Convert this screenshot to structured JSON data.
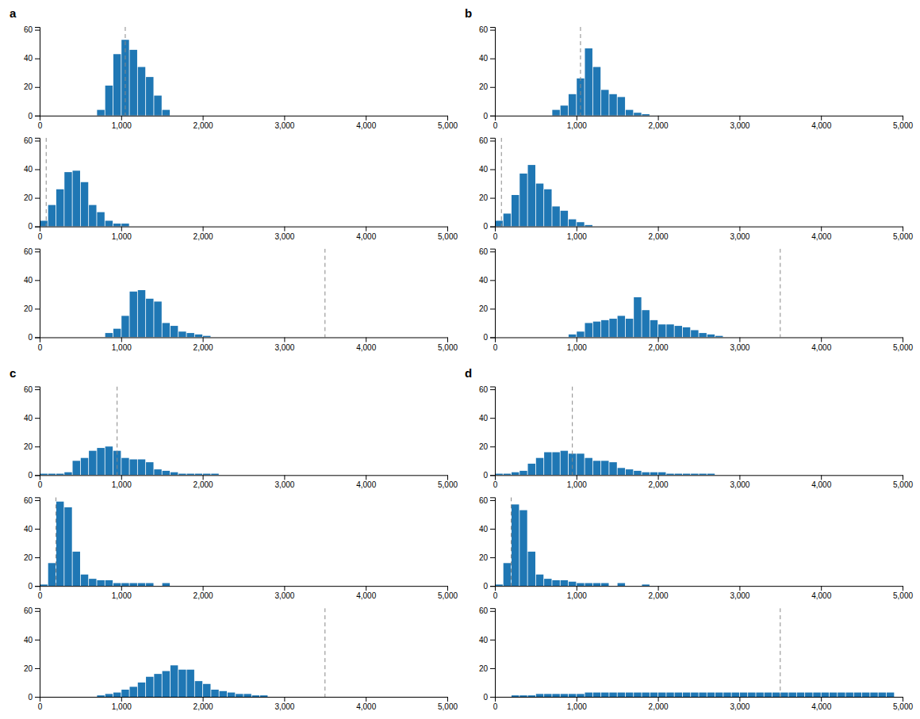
{
  "chart_data": [
    {
      "type": "histogram",
      "title": "a",
      "bins": [
        700,
        800,
        900,
        1000,
        1100,
        1200,
        1300,
        1400,
        1500,
        1600
      ],
      "values": [
        4,
        21,
        43,
        53,
        46,
        34,
        27,
        14,
        4
      ],
      "vline": {
        "x": 1050,
        "line_style": "dashed"
      },
      "xlim": [
        0,
        5000
      ],
      "ylim": [
        0,
        62
      ],
      "xticks": [
        0,
        {
          "value": 1000,
          "label": "1,000"
        },
        {
          "value": 2000,
          "label": "2,000"
        },
        {
          "value": 3000,
          "label": "3,000"
        },
        {
          "value": 4000,
          "label": "4,000"
        },
        {
          "value": 5000,
          "label": "5,000"
        }
      ],
      "yticks": [
        0,
        20,
        40,
        60
      ]
    },
    {
      "type": "histogram",
      "bins": [
        0,
        100,
        200,
        300,
        400,
        500,
        600,
        700,
        800,
        900,
        1000,
        1100
      ],
      "values": [
        4,
        15,
        26,
        38,
        39,
        31,
        15,
        10,
        4,
        2,
        2
      ],
      "vline": {
        "x": 80,
        "line_style": "dashed"
      },
      "xlim": [
        0,
        5000
      ],
      "ylim": [
        0,
        62
      ],
      "xticks": [
        0,
        {
          "value": 1000,
          "label": "1,000"
        },
        {
          "value": 2000,
          "label": "2,000"
        },
        {
          "value": 3000,
          "label": "3,000"
        },
        {
          "value": 4000,
          "label": "4,000"
        },
        {
          "value": 5000,
          "label": "5,000"
        }
      ],
      "yticks": [
        0,
        20,
        40,
        60
      ]
    },
    {
      "type": "histogram",
      "bins": [
        800,
        900,
        1000,
        1100,
        1200,
        1300,
        1400,
        1500,
        1600,
        1700,
        1800,
        1900,
        2000,
        2100,
        2200,
        2300,
        2400
      ],
      "values": [
        3,
        6,
        15,
        32,
        33,
        27,
        25,
        10,
        8,
        4,
        3,
        2,
        1,
        0,
        0,
        0
      ],
      "vline": {
        "x": 3500,
        "line_style": "dashed"
      },
      "xlim": [
        0,
        5000
      ],
      "ylim": [
        0,
        62
      ],
      "xticks": [
        0,
        {
          "value": 1000,
          "label": "1,000"
        },
        {
          "value": 2000,
          "label": "2,000"
        },
        {
          "value": 3000,
          "label": "3,000"
        },
        {
          "value": 4000,
          "label": "4,000"
        },
        {
          "value": 5000,
          "label": "5,000"
        }
      ],
      "yticks": [
        0,
        20,
        40,
        60
      ]
    },
    {
      "type": "histogram",
      "title": "b",
      "bins": [
        700,
        800,
        900,
        1000,
        1100,
        1200,
        1300,
        1400,
        1500,
        1600,
        1700,
        1800,
        1900,
        2000
      ],
      "values": [
        4,
        7,
        15,
        26,
        47,
        34,
        18,
        15,
        13,
        4,
        2,
        1,
        0
      ],
      "vline": {
        "x": 1050,
        "line_style": "dashed"
      },
      "xlim": [
        0,
        5000
      ],
      "ylim": [
        0,
        62
      ],
      "xticks": [
        0,
        {
          "value": 1000,
          "label": "1,000"
        },
        {
          "value": 2000,
          "label": "2,000"
        },
        {
          "value": 3000,
          "label": "3,000"
        },
        {
          "value": 4000,
          "label": "4,000"
        },
        {
          "value": 5000,
          "label": "5,000"
        }
      ],
      "yticks": [
        0,
        20,
        40,
        60
      ]
    },
    {
      "type": "histogram",
      "bins": [
        0,
        100,
        200,
        300,
        400,
        500,
        600,
        700,
        800,
        900,
        1000,
        1100,
        1200,
        1300,
        1400,
        1500
      ],
      "values": [
        4,
        9,
        22,
        37,
        43,
        30,
        26,
        14,
        11,
        5,
        3,
        1,
        0,
        0,
        0
      ],
      "vline": {
        "x": 80,
        "line_style": "dashed"
      },
      "xlim": [
        0,
        5000
      ],
      "ylim": [
        0,
        62
      ],
      "xticks": [
        0,
        {
          "value": 1000,
          "label": "1,000"
        },
        {
          "value": 2000,
          "label": "2,000"
        },
        {
          "value": 3000,
          "label": "3,000"
        },
        {
          "value": 4000,
          "label": "4,000"
        },
        {
          "value": 5000,
          "label": "5,000"
        }
      ],
      "yticks": [
        0,
        20,
        40,
        60
      ]
    },
    {
      "type": "histogram",
      "bins": [
        900,
        1000,
        1100,
        1200,
        1300,
        1400,
        1500,
        1600,
        1700,
        1800,
        1900,
        2000,
        2100,
        2200,
        2300,
        2400,
        2500,
        2600,
        2700,
        2800,
        2900,
        3000,
        3100,
        3200,
        3300,
        3400,
        3500,
        3600
      ],
      "values": [
        2,
        4,
        10,
        11,
        12,
        13,
        15,
        13,
        28,
        19,
        12,
        9,
        9,
        8,
        7,
        5,
        3,
        2,
        1,
        0,
        0,
        0,
        0,
        0,
        0,
        0,
        0
      ],
      "vline": {
        "x": 3500,
        "line_style": "dashed"
      },
      "xlim": [
        0,
        5000
      ],
      "ylim": [
        0,
        62
      ],
      "xticks": [
        0,
        {
          "value": 1000,
          "label": "1,000"
        },
        {
          "value": 2000,
          "label": "2,000"
        },
        {
          "value": 3000,
          "label": "3,000"
        },
        {
          "value": 4000,
          "label": "4,000"
        },
        {
          "value": 5000,
          "label": "5,000"
        }
      ],
      "yticks": [
        0,
        20,
        40,
        60
      ]
    },
    {
      "type": "histogram",
      "title": "c",
      "bins": [
        0,
        100,
        200,
        300,
        400,
        500,
        600,
        700,
        800,
        900,
        1000,
        1100,
        1200,
        1300,
        1400,
        1500,
        1600,
        1700,
        1800,
        1900,
        2000,
        2100,
        2200,
        2300,
        2400,
        2500,
        2600,
        2700,
        2800,
        2900,
        3000,
        3100,
        3200,
        3300,
        3400,
        3500,
        3600,
        3700,
        3800,
        3900,
        4000
      ],
      "values": [
        1,
        1,
        1,
        2,
        10,
        12,
        17,
        19,
        20,
        17,
        12,
        11,
        11,
        9,
        4,
        3,
        2,
        1,
        1,
        1,
        1,
        1,
        0,
        0,
        0,
        0,
        0,
        0,
        0,
        0,
        0,
        0,
        0,
        0,
        0,
        0,
        0,
        0,
        0,
        0
      ],
      "vline": {
        "x": 950,
        "line_style": "dashed"
      },
      "xlim": [
        0,
        5000
      ],
      "ylim": [
        0,
        62
      ],
      "xticks": [
        0,
        {
          "value": 1000,
          "label": "1,000"
        },
        {
          "value": 2000,
          "label": "2,000"
        },
        {
          "value": 3000,
          "label": "3,000"
        },
        {
          "value": 4000,
          "label": "4,000"
        },
        {
          "value": 5000,
          "label": "5,000"
        }
      ],
      "yticks": [
        0,
        20,
        40,
        60
      ]
    },
    {
      "type": "histogram",
      "bins": [
        0,
        100,
        200,
        300,
        400,
        500,
        600,
        700,
        800,
        900,
        1000,
        1100,
        1200,
        1300,
        1400,
        1500,
        1600,
        1700,
        1800,
        1900,
        2000,
        2100,
        2200,
        2300,
        2400,
        2500,
        2600,
        2700,
        2800,
        2900,
        3000,
        3100,
        3200,
        3300,
        3400,
        3500,
        3600,
        3700,
        3800,
        3900
      ],
      "values": [
        1,
        16,
        59,
        55,
        24,
        8,
        5,
        4,
        4,
        2,
        2,
        2,
        2,
        2,
        0,
        2,
        0,
        0,
        0,
        0,
        0,
        0,
        0,
        0,
        0,
        0,
        0,
        0,
        0,
        0,
        0,
        0,
        0,
        0,
        0,
        0,
        0,
        0,
        0
      ],
      "vline": {
        "x": 200,
        "line_style": "dashed"
      },
      "xlim": [
        0,
        5000
      ],
      "ylim": [
        0,
        62
      ],
      "xticks": [
        0,
        {
          "value": 1000,
          "label": "1,000"
        },
        {
          "value": 2000,
          "label": "2,000"
        },
        {
          "value": 3000,
          "label": "3,000"
        },
        {
          "value": 4000,
          "label": "4,000"
        },
        {
          "value": 5000,
          "label": "5,000"
        }
      ],
      "yticks": [
        0,
        20,
        40,
        60
      ]
    },
    {
      "type": "histogram",
      "bins": [
        0,
        100,
        200,
        300,
        400,
        500,
        600,
        700,
        800,
        900,
        1000,
        1100,
        1200,
        1300,
        1400,
        1500,
        1600,
        1700,
        1800,
        1900,
        2000,
        2100,
        2200,
        2300,
        2400,
        2500,
        2600,
        2700,
        2800,
        2900,
        3000,
        3100,
        3200,
        3300,
        3400,
        3500,
        3600,
        3700,
        3800,
        3900,
        4000,
        4100,
        4200,
        4300,
        4400
      ],
      "values": [
        0,
        0,
        0,
        0,
        0,
        0,
        0,
        1,
        2,
        3,
        5,
        7,
        10,
        14,
        16,
        18,
        22,
        19,
        19,
        11,
        9,
        5,
        4,
        3,
        2,
        2,
        1,
        1,
        0,
        0,
        0,
        0,
        0,
        0,
        0,
        0,
        0,
        0,
        0,
        0,
        0,
        0,
        0,
        0
      ],
      "vline": {
        "x": 3500,
        "line_style": "dashed"
      },
      "xlim": [
        0,
        5000
      ],
      "ylim": [
        0,
        62
      ],
      "xticks": [
        0,
        {
          "value": 1000,
          "label": "1,000"
        },
        {
          "value": 2000,
          "label": "2,000"
        },
        {
          "value": 3000,
          "label": "3,000"
        },
        {
          "value": 4000,
          "label": "4,000"
        },
        {
          "value": 5000,
          "label": "5,000"
        }
      ],
      "yticks": [
        0,
        20,
        40,
        60
      ]
    },
    {
      "type": "histogram",
      "title": "d",
      "bins": [
        0,
        100,
        200,
        300,
        400,
        500,
        600,
        700,
        800,
        900,
        1000,
        1100,
        1200,
        1300,
        1400,
        1500,
        1600,
        1700,
        1800,
        1900,
        2000,
        2100,
        2200,
        2300,
        2400,
        2500,
        2600,
        2700,
        2800,
        2900,
        3000,
        3100,
        3200,
        3300,
        3400,
        3500,
        3600,
        3700,
        3800,
        3900,
        4000
      ],
      "values": [
        1,
        1,
        2,
        3,
        8,
        12,
        16,
        16,
        17,
        15,
        15,
        12,
        10,
        10,
        9,
        5,
        4,
        3,
        2,
        2,
        2,
        1,
        1,
        1,
        1,
        1,
        1,
        0,
        0,
        0,
        0,
        0,
        0,
        0,
        0,
        0,
        0,
        0,
        0,
        0
      ],
      "vline": {
        "x": 950,
        "line_style": "dashed"
      },
      "xlim": [
        0,
        5000
      ],
      "ylim": [
        0,
        62
      ],
      "xticks": [
        0,
        {
          "value": 1000,
          "label": "1,000"
        },
        {
          "value": 2000,
          "label": "2,000"
        },
        {
          "value": 3000,
          "label": "3,000"
        },
        {
          "value": 4000,
          "label": "4,000"
        },
        {
          "value": 5000,
          "label": "5,000"
        }
      ],
      "yticks": [
        0,
        20,
        40,
        60
      ]
    },
    {
      "type": "histogram",
      "bins": [
        0,
        100,
        200,
        300,
        400,
        500,
        600,
        700,
        800,
        900,
        1000,
        1100,
        1200,
        1300,
        1400,
        1500,
        1600,
        1700,
        1800,
        1900,
        2000,
        2100,
        2200,
        2300,
        2400,
        2500,
        2600,
        2700,
        2800,
        2900,
        3000,
        3100,
        3200,
        3300,
        3400,
        3500,
        3600,
        3700,
        3800,
        3900,
        4000,
        4100,
        4200,
        4300,
        4400,
        4500
      ],
      "values": [
        1,
        16,
        57,
        53,
        24,
        8,
        5,
        4,
        4,
        3,
        2,
        2,
        2,
        2,
        0,
        2,
        0,
        0,
        1,
        0,
        0,
        0,
        0,
        0,
        0,
        0,
        0,
        0,
        0,
        0,
        0,
        0,
        0,
        0,
        0,
        0,
        0,
        0,
        0,
        0,
        0,
        0,
        0,
        0,
        0
      ],
      "vline": {
        "x": 200,
        "line_style": "dashed"
      },
      "xlim": [
        0,
        5000
      ],
      "ylim": [
        0,
        62
      ],
      "xticks": [
        0,
        {
          "value": 1000,
          "label": "1,000"
        },
        {
          "value": 2000,
          "label": "2,000"
        },
        {
          "value": 3000,
          "label": "3,000"
        },
        {
          "value": 4000,
          "label": "4,000"
        },
        {
          "value": 5000,
          "label": "5,000"
        }
      ],
      "yticks": [
        0,
        20,
        40,
        60
      ]
    },
    {
      "type": "histogram",
      "bins": [
        0,
        100,
        200,
        300,
        400,
        500,
        600,
        700,
        800,
        900,
        1000,
        1100,
        1200,
        1300,
        1400,
        1500,
        1600,
        1700,
        1800,
        1900,
        2000,
        2100,
        2200,
        2300,
        2400,
        2500,
        2600,
        2700,
        2800,
        2900,
        3000,
        3100,
        3200,
        3300,
        3400,
        3500,
        3600,
        3700,
        3800,
        3900,
        4000,
        4100,
        4200,
        4300,
        4400,
        4500,
        4600,
        4700,
        4800,
        4900
      ],
      "values": [
        0,
        0,
        1,
        1,
        1,
        2,
        2,
        2,
        2,
        2,
        2,
        3,
        3,
        3,
        3,
        3,
        3,
        3,
        3,
        3,
        3,
        3,
        3,
        3,
        3,
        3,
        3,
        3,
        3,
        3,
        3,
        3,
        3,
        3,
        3,
        3,
        3,
        3,
        3,
        3,
        3,
        3,
        3,
        3,
        3,
        3,
        3,
        3,
        3
      ],
      "vline": {
        "x": 3500,
        "line_style": "dashed"
      },
      "xlim": [
        0,
        5000
      ],
      "ylim": [
        0,
        62
      ],
      "xticks": [
        0,
        {
          "value": 1000,
          "label": "1,000"
        },
        {
          "value": 2000,
          "label": "2,000"
        },
        {
          "value": 3000,
          "label": "3,000"
        },
        {
          "value": 4000,
          "label": "4,000"
        },
        {
          "value": 5000,
          "label": "5,000"
        }
      ],
      "yticks": [
        0,
        20,
        40,
        60
      ]
    }
  ]
}
